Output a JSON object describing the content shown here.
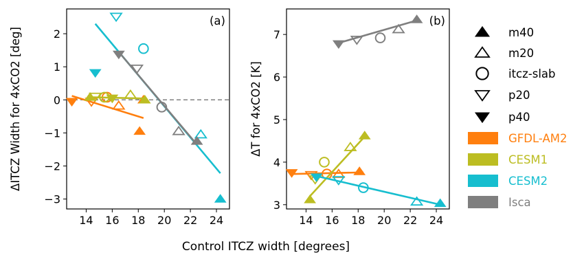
{
  "chart_data": [
    {
      "type": "scatter",
      "panel_label": "(a)",
      "ylabel": "ΔITCZ Width for 4xCO2 [deg]",
      "xlim": [
        12.5,
        25.0
      ],
      "ylim": [
        -3.3,
        2.75
      ],
      "xticks": [
        14,
        16,
        18,
        20,
        22,
        24
      ],
      "yticks": [
        -3,
        -2,
        -1,
        0,
        1,
        2
      ],
      "grid": false,
      "zero_line": true,
      "series": [
        {
          "name": "GFDL-AM2",
          "color": "#ff7f0e",
          "x": [
            12.9,
            14.4,
            15.6,
            16.5,
            18.1,
            18.4
          ],
          "y": [
            -0.05,
            -0.05,
            0.08,
            -0.18,
            -0.95,
            0.0
          ],
          "markers": [
            "p40",
            "p20",
            "itcz-slab",
            "m20",
            "m40",
            "m40"
          ],
          "fit": [
            [
              12.9,
              0.12
            ],
            [
              18.4,
              -0.55
            ]
          ]
        },
        {
          "name": "CESM1",
          "color": "#bcbd22",
          "x": [
            14.3,
            14.7,
            15.4,
            16.0,
            17.4,
            18.5
          ],
          "y": [
            0.08,
            0.1,
            0.08,
            0.05,
            0.15,
            0.0
          ],
          "markers": [
            "m40",
            "p20",
            "itcz-slab",
            "p40",
            "m20",
            "m40"
          ],
          "fit": [
            [
              14.3,
              0.08
            ],
            [
              18.5,
              0.04
            ]
          ]
        },
        {
          "name": "CESM2",
          "color": "#17becf",
          "x": [
            14.7,
            16.3,
            18.4,
            22.8,
            24.3
          ],
          "y": [
            0.82,
            2.52,
            1.55,
            -1.05,
            -3.0
          ],
          "markers": [
            "p40",
            "p20",
            "itcz-slab",
            "m20",
            "m40"
          ],
          "fit": [
            [
              14.7,
              2.3
            ],
            [
              24.3,
              -2.22
            ]
          ]
        },
        {
          "name": "Isca",
          "color": "#7f7f7f",
          "x": [
            16.5,
            17.9,
            19.8,
            21.1,
            22.5
          ],
          "y": [
            1.38,
            0.95,
            -0.22,
            -0.95,
            -1.25
          ],
          "markers": [
            "p40",
            "p20",
            "itcz-slab",
            "m20",
            "m40"
          ],
          "fit": [
            [
              16.5,
              1.45
            ],
            [
              22.5,
              -1.35
            ]
          ]
        }
      ]
    },
    {
      "type": "scatter",
      "panel_label": "(b)",
      "ylabel": "ΔT for 4xCO2 [K]",
      "xlim": [
        12.5,
        25.0
      ],
      "ylim": [
        2.9,
        7.6
      ],
      "xticks": [
        14,
        16,
        18,
        20,
        22,
        24
      ],
      "yticks": [
        3,
        4,
        5,
        6,
        7
      ],
      "grid": false,
      "zero_line": false,
      "series": [
        {
          "name": "GFDL-AM2",
          "color": "#ff7f0e",
          "x": [
            12.9,
            14.4,
            15.6,
            16.5,
            18.1
          ],
          "y": [
            3.75,
            3.7,
            3.72,
            3.72,
            3.78
          ],
          "markers": [
            "p40",
            "p20",
            "itcz-slab",
            "m20",
            "m40"
          ],
          "fit": [
            [
              12.9,
              3.72
            ],
            [
              18.4,
              3.76
            ]
          ]
        },
        {
          "name": "CESM1",
          "color": "#bcbd22",
          "x": [
            14.3,
            14.7,
            15.4,
            17.4,
            18.5
          ],
          "y": [
            3.12,
            3.6,
            4.0,
            4.35,
            4.62
          ],
          "markers": [
            "m40",
            "p20",
            "itcz-slab",
            "m20",
            "m40"
          ],
          "fit": [
            [
              14.3,
              3.2
            ],
            [
              18.5,
              4.6
            ]
          ]
        },
        {
          "name": "CESM2",
          "color": "#17becf",
          "x": [
            14.8,
            16.5,
            18.4,
            22.5,
            24.3
          ],
          "y": [
            3.65,
            3.58,
            3.4,
            3.07,
            3.03
          ],
          "markers": [
            "p40",
            "p20",
            "itcz-slab",
            "m20",
            "m40"
          ],
          "fit": [
            [
              14.7,
              3.68
            ],
            [
              24.3,
              3.0
            ]
          ]
        },
        {
          "name": "Isca",
          "color": "#7f7f7f",
          "x": [
            16.5,
            17.9,
            19.7,
            21.1,
            22.5
          ],
          "y": [
            6.78,
            6.88,
            6.92,
            7.12,
            7.35
          ],
          "markers": [
            "p40",
            "p20",
            "itcz-slab",
            "m20",
            "m40"
          ],
          "fit": [
            [
              16.5,
              6.8
            ],
            [
              22.5,
              7.33
            ]
          ]
        }
      ]
    }
  ],
  "shared_xlabel": "Control ITCZ width [degrees]",
  "legend": {
    "placement": "right",
    "marker_entries": [
      {
        "key": "m40",
        "label": "m40"
      },
      {
        "key": "m20",
        "label": "m20"
      },
      {
        "key": "itcz-slab",
        "label": "itcz-slab"
      },
      {
        "key": "p20",
        "label": "p20"
      },
      {
        "key": "p40",
        "label": "p40"
      }
    ],
    "model_entries": [
      {
        "label": "GFDL-AM2",
        "color": "#ff7f0e"
      },
      {
        "label": "CESM1",
        "color": "#bcbd22"
      },
      {
        "label": "CESM2",
        "color": "#17becf"
      },
      {
        "label": "Isca",
        "color": "#7f7f7f"
      }
    ]
  }
}
